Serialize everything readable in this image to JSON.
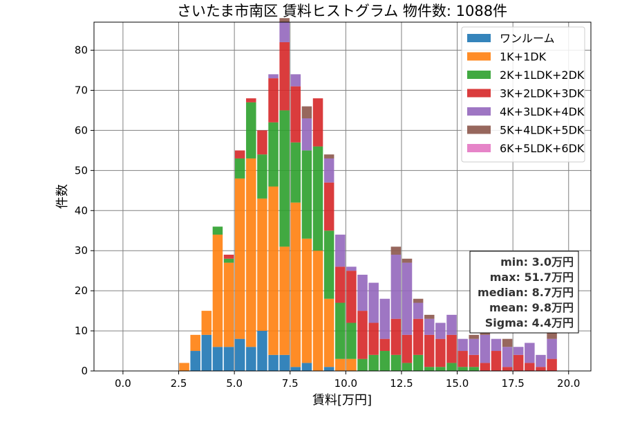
{
  "chart_data": {
    "type": "bar",
    "stacked": true,
    "title": "さいたま市南区 賃料ヒストグラム 物件数: 1088件",
    "xlabel": "賃料[万円]",
    "ylabel": "件数",
    "xlim": [
      -1.3,
      21.0
    ],
    "ylim": [
      0,
      87
    ],
    "xticks": [
      0.0,
      2.5,
      5.0,
      7.5,
      10.0,
      12.5,
      15.0,
      17.5,
      20.0
    ],
    "xtick_labels": [
      "0.0",
      "2.5",
      "5.0",
      "7.5",
      "10.0",
      "12.5",
      "15.0",
      "17.5",
      "20.0"
    ],
    "yticks": [
      0,
      10,
      20,
      30,
      40,
      50,
      60,
      70,
      80
    ],
    "ytick_labels": [
      "0",
      "10",
      "20",
      "30",
      "40",
      "50",
      "60",
      "70",
      "80"
    ],
    "grid": true,
    "legend_position": "top-right",
    "bin_width": 0.5,
    "bins": [
      2.75,
      3.25,
      3.75,
      4.25,
      4.75,
      5.25,
      5.75,
      6.25,
      6.75,
      7.25,
      7.75,
      8.25,
      8.75,
      9.25,
      9.75,
      10.25,
      10.75,
      11.25,
      11.75,
      12.25,
      12.75,
      13.25,
      13.75,
      14.25,
      14.75,
      15.25,
      15.75,
      16.25,
      16.75,
      17.25,
      17.75,
      18.25,
      18.75,
      19.25
    ],
    "series": [
      {
        "name": "ワンルーム",
        "color": "#1f77b4",
        "values": [
          0,
          5,
          9,
          6,
          6,
          8,
          6,
          10,
          4,
          4,
          1,
          2,
          0,
          1,
          0,
          0,
          0,
          0,
          0,
          0,
          0,
          0,
          0,
          0,
          0,
          0,
          0,
          0,
          0,
          0,
          0,
          0,
          0,
          0
        ]
      },
      {
        "name": "1K+1DK",
        "color": "#ff7f0e",
        "values": [
          2,
          4,
          6,
          28,
          21,
          40,
          47,
          33,
          42,
          27,
          41,
          31,
          30,
          17,
          3,
          3,
          0,
          0,
          0,
          0,
          0,
          0,
          0,
          0,
          0,
          0,
          0,
          0,
          0,
          0,
          0,
          0,
          0,
          0
        ]
      },
      {
        "name": "2K+1LDK+2DK",
        "color": "#2ca02c",
        "values": [
          0,
          0,
          0,
          2,
          1,
          5,
          14,
          11,
          16,
          34,
          15,
          22,
          26,
          17,
          14,
          9,
          3,
          4,
          5,
          4,
          2,
          4,
          1,
          1,
          2,
          1,
          1,
          0,
          0,
          0,
          0,
          0,
          0,
          0
        ]
      },
      {
        "name": "3K+2LDK+3DK",
        "color": "#d62728",
        "values": [
          0,
          0,
          0,
          0,
          1,
          2,
          1,
          6,
          11,
          17,
          14,
          0,
          12,
          12,
          9,
          13,
          12,
          8,
          3,
          9,
          7,
          9,
          8,
          7,
          7,
          4,
          3,
          2,
          5,
          1,
          4,
          2,
          1,
          3
        ]
      },
      {
        "name": "4K+3LDK+4DK",
        "color": "#9467bd",
        "values": [
          0,
          0,
          0,
          0,
          0,
          0,
          0,
          0,
          1,
          5,
          3,
          8,
          0,
          6,
          8,
          1,
          9,
          10,
          10,
          16,
          18,
          4,
          4,
          4,
          5,
          3,
          4,
          7,
          3,
          5,
          2,
          5,
          3,
          5
        ]
      },
      {
        "name": "5K+4LDK+5DK",
        "color": "#8c564b",
        "values": [
          0,
          0,
          0,
          0,
          0,
          0,
          0,
          0,
          0,
          1,
          0,
          3,
          0,
          1,
          0,
          0,
          0,
          0,
          0,
          2,
          1,
          1,
          1,
          0,
          0,
          0,
          1,
          1,
          0,
          2,
          0,
          0,
          0,
          2
        ]
      },
      {
        "name": "6K+5LDK+6DK",
        "color": "#e377c2",
        "values": [
          0,
          0,
          0,
          0,
          0,
          0,
          0,
          0,
          0,
          0,
          0,
          0,
          0,
          0,
          0,
          0,
          0,
          0,
          0,
          0,
          0,
          0,
          0,
          0,
          0,
          0,
          0,
          0,
          0,
          0,
          0,
          0,
          0,
          0
        ]
      }
    ],
    "annotation_lines": [
      "min: 3.0万円",
      "max: 51.7万円",
      "median: 8.7万円",
      "mean: 9.8万円",
      "Sigma: 4.4万円"
    ]
  }
}
